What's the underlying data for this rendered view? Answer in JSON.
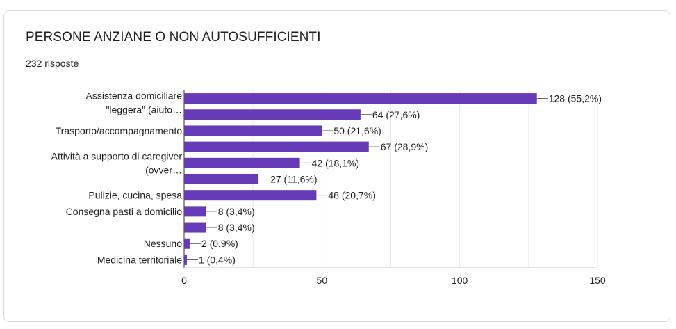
{
  "header": {
    "title": "PERSONE ANZIANE O NON AUTOSUFFICIENTI",
    "responses": "232 risposte"
  },
  "colors": {
    "bar": "#673ab7",
    "grid": "#e8e8e8",
    "axis": "#333333",
    "text": "#222222"
  },
  "chart_data": {
    "type": "bar",
    "orientation": "horizontal",
    "categories": [
      [
        "Assistenza domiciliare",
        "\"leggera\" (aiuto…"
      ],
      [],
      [
        "Trasporto/accompagnamento"
      ],
      [],
      [
        "Attività a supporto di caregiver",
        "(ovver…"
      ],
      [],
      [
        "Pulizie, cucina, spesa"
      ],
      [
        "Consegna pasti a domicilio"
      ],
      [],
      [
        "Nessuno"
      ],
      [
        "Medicina territoriale"
      ]
    ],
    "values": [
      128,
      64,
      50,
      67,
      42,
      27,
      48,
      8,
      8,
      2,
      1
    ],
    "data_labels": [
      "128 (55,2%)",
      "64 (27,6%)",
      "50 (21,6%)",
      "67 (28,9%)",
      "42 (18,1%)",
      "27 (11,6%)",
      "48 (20,7%)",
      "8 (3,4%)",
      "8 (3,4%)",
      "2 (0,9%)",
      "1 (0,4%)"
    ],
    "xlim": [
      0,
      150
    ],
    "xticks": [
      0,
      50,
      100,
      150
    ],
    "grid": true
  }
}
